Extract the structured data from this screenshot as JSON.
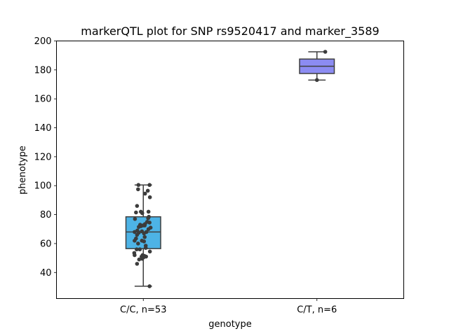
{
  "chart_data": {
    "type": "box",
    "title": "markerQTL plot for SNP rs9520417 and marker_3589",
    "xlabel": "genotype",
    "ylabel": "phenotype",
    "ylim": [
      22,
      200
    ],
    "yticks": [
      40,
      60,
      80,
      100,
      120,
      140,
      160,
      180,
      200
    ],
    "grid": false,
    "categories": [
      "C/C, n=53",
      "C/T, n=6"
    ],
    "boxes": [
      {
        "category": "C/C, n=53",
        "color": "#4db3e6",
        "whisker_low": 30.5,
        "q1": 56.5,
        "median": 68,
        "q3": 78.5,
        "whisker_high": 100.5,
        "points": [
          [
            -0.14,
            100.5
          ],
          [
            0.18,
            100.5
          ],
          [
            -0.15,
            97.5
          ],
          [
            0.13,
            96.5
          ],
          [
            0.05,
            94.5
          ],
          [
            0.19,
            92
          ],
          [
            -0.18,
            86
          ],
          [
            -0.07,
            82
          ],
          [
            -0.21,
            81.5
          ],
          [
            -0.03,
            81
          ],
          [
            0.15,
            82
          ],
          [
            0.16,
            78.5
          ],
          [
            0.14,
            77.5
          ],
          [
            -0.24,
            77
          ],
          [
            0.11,
            75
          ],
          [
            0.18,
            74.5
          ],
          [
            0.05,
            73.5
          ],
          [
            -0.09,
            73
          ],
          [
            0.04,
            72.5
          ],
          [
            -0.07,
            72
          ],
          [
            -0.01,
            72.5
          ],
          [
            0.21,
            71
          ],
          [
            -0.13,
            71.5
          ],
          [
            0.15,
            70
          ],
          [
            -0.17,
            69
          ],
          [
            -0.25,
            68
          ],
          [
            -0.13,
            67.5
          ],
          [
            -0.04,
            68.5
          ],
          [
            0.02,
            67
          ],
          [
            0.09,
            68
          ],
          [
            -0.18,
            66
          ],
          [
            0.04,
            64.5
          ],
          [
            -0.21,
            63.5
          ],
          [
            -0.25,
            62
          ],
          [
            -0.04,
            62
          ],
          [
            0.02,
            61.5
          ],
          [
            -0.15,
            60
          ],
          [
            0.07,
            58.5
          ],
          [
            0.07,
            57
          ],
          [
            -0.19,
            56
          ],
          [
            -0.1,
            56
          ],
          [
            0.19,
            54.5
          ],
          [
            -0.26,
            53.5
          ],
          [
            -0.25,
            52
          ],
          [
            -0.02,
            52
          ],
          [
            0.03,
            51.5
          ],
          [
            -0.05,
            51
          ],
          [
            0.08,
            51
          ],
          [
            0.01,
            50.5
          ],
          [
            -0.03,
            49.5
          ],
          [
            -0.12,
            49
          ],
          [
            -0.18,
            46
          ],
          [
            0.18,
            30.5
          ]
        ]
      },
      {
        "category": "C/T, n=6",
        "color": "#8c8cf2",
        "whisker_low": 173,
        "q1": 177.5,
        "median": 182.5,
        "q3": 187.5,
        "whisker_high": 192.5,
        "points": [
          [
            0.0,
            173
          ],
          [
            0.24,
            192.5
          ]
        ]
      }
    ]
  }
}
